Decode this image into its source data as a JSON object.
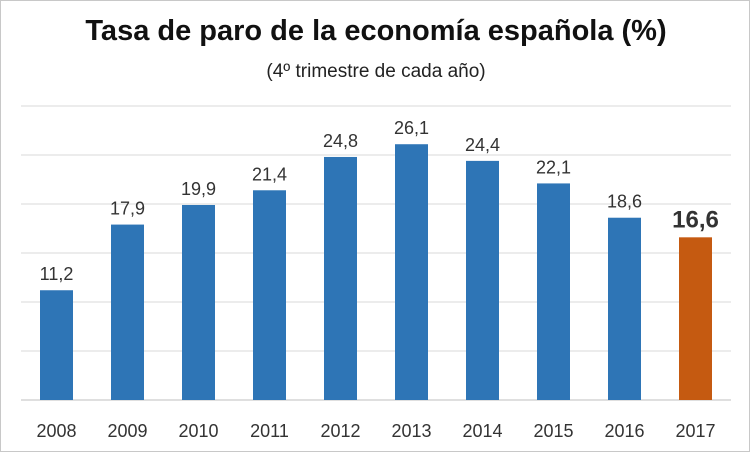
{
  "chart_data": {
    "type": "bar",
    "title": "Tasa de paro  de la economía española (%)",
    "subtitle": "(4º trimestre de cada año)",
    "categories": [
      "2008",
      "2009",
      "2010",
      "2011",
      "2012",
      "2013",
      "2014",
      "2015",
      "2016",
      "2017"
    ],
    "values": [
      11.2,
      17.9,
      19.9,
      21.4,
      24.8,
      26.1,
      24.4,
      22.1,
      18.6,
      16.6
    ],
    "value_labels": [
      "11,2",
      "17,9",
      "19,9",
      "21,4",
      "24,8",
      "26,1",
      "24,4",
      "22,1",
      "18,6",
      "16,6"
    ],
    "highlight_index": 9,
    "bar_color": "#2e75b6",
    "highlight_color": "#c55a11",
    "highlight_label_color": "#843c0c",
    "ylim": [
      0,
      30
    ],
    "grid": true,
    "y_axis_labels_shown": false
  }
}
